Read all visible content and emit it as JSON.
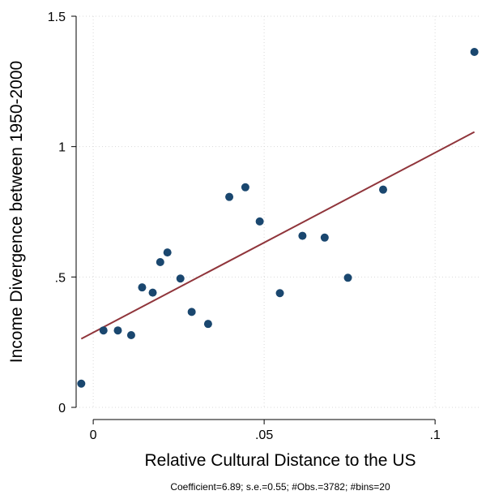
{
  "chart_data": {
    "type": "scatter",
    "title": "",
    "xlabel": "Relative Cultural Distance to the US",
    "ylabel": "Income Divergence between 1950-2000",
    "xlim": [
      -0.005,
      0.113
    ],
    "ylim": [
      0,
      1.5
    ],
    "x_ticks": [
      0,
      0.05,
      0.1
    ],
    "x_tick_labels": [
      "0",
      ".05",
      ".1"
    ],
    "y_ticks": [
      0,
      0.5,
      1,
      1.5
    ],
    "y_tick_labels": [
      "0",
      ".5",
      "1",
      "1.5"
    ],
    "grid": true,
    "series": [
      {
        "x": [
          -0.0035,
          0.003,
          0.0072,
          0.0111,
          0.0143,
          0.0174,
          0.0196,
          0.0217,
          0.0255,
          0.0288,
          0.0336,
          0.0398,
          0.0445,
          0.0487,
          0.0546,
          0.0612,
          0.0677,
          0.0745,
          0.0848,
          0.1115
        ],
        "y": [
          0.091,
          0.295,
          0.295,
          0.277,
          0.46,
          0.44,
          0.557,
          0.594,
          0.494,
          0.366,
          0.32,
          0.807,
          0.844,
          0.713,
          0.438,
          0.658,
          0.651,
          0.497,
          0.835,
          1.363
        ]
      }
    ],
    "fit_line": {
      "x": [
        -0.0035,
        0.1115
      ],
      "y": [
        0.263,
        1.056
      ]
    },
    "colors": {
      "points": "#1a476f",
      "fit_line": "#90353b",
      "grid": "#d9d9d9"
    },
    "note": "Coefficient=6.89; s.e.=0.55; #Obs.=3782; #bins=20"
  }
}
